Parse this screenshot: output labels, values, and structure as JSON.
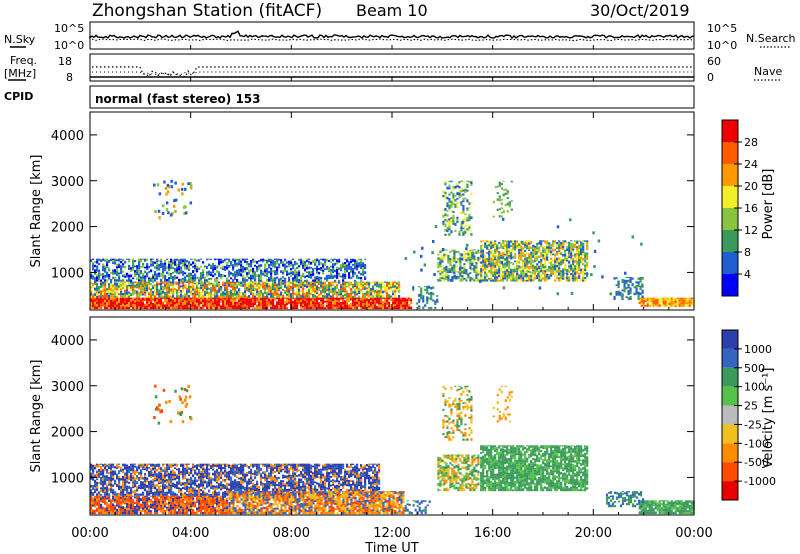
{
  "header": {
    "title": "Zhongshan Station (fitACF)",
    "beam": "Beam 10",
    "date": "30/Oct/2019"
  },
  "noise_panel": {
    "left_label": "N.Sky",
    "left_ticks": [
      "10^5",
      "10^0"
    ],
    "right_label": "N.Search",
    "right_ticks": [
      "10^5",
      "10^0"
    ]
  },
  "freq_panel": {
    "left_label_line1": "Freq.",
    "left_label_line2": "[MHz]",
    "left_ticks": [
      "18",
      "8"
    ],
    "right_label": "Nave",
    "right_ticks": [
      "60",
      "0"
    ]
  },
  "cpid_label": "CPID",
  "mode_text": "normal (fast stereo) 153",
  "time_axis": {
    "label": "Time UT",
    "ticks": [
      "00:00",
      "04:00",
      "08:00",
      "12:00",
      "16:00",
      "20:00",
      "00:00"
    ]
  },
  "chart_data": [
    {
      "type": "heatmap",
      "title": "",
      "xlabel": "Time UT",
      "ylabel": "Slant Range [km]",
      "x_range_hours": [
        0,
        24
      ],
      "ylim": [
        180,
        4500
      ],
      "yticks": [
        "1000",
        "2000",
        "3000",
        "4000"
      ],
      "colorbar": {
        "label": "Power [dB]",
        "ticks": [
          "4",
          "8",
          "12",
          "16",
          "20",
          "24",
          "28"
        ],
        "colors": [
          "#0000ff",
          "#1f5fcf",
          "#3a9a5b",
          "#88c440",
          "#f2ee2a",
          "#ff9a00",
          "#ff5a00",
          "#ee0000"
        ]
      },
      "regions": [
        {
          "t0": 0,
          "t1": 12.8,
          "r0": 200,
          "r1": 450,
          "intensity": "28"
        },
        {
          "t0": 0,
          "t1": 12.3,
          "r0": 450,
          "r1": 800,
          "intensity": "16"
        },
        {
          "t0": 0,
          "t1": 11,
          "r0": 800,
          "r1": 1300,
          "intensity": "8"
        },
        {
          "t0": 13.8,
          "t1": 15.5,
          "r0": 800,
          "r1": 1500,
          "intensity": "16"
        },
        {
          "t0": 15.5,
          "t1": 19.8,
          "r0": 800,
          "r1": 1700,
          "intensity": "20"
        },
        {
          "t0": 21.8,
          "t1": 24,
          "r0": 250,
          "r1": 450,
          "intensity": "20"
        }
      ]
    },
    {
      "type": "heatmap",
      "title": "",
      "xlabel": "Time UT",
      "ylabel": "Slant Range [km]",
      "x_range_hours": [
        0,
        24
      ],
      "ylim": [
        180,
        4500
      ],
      "yticks": [
        "1000",
        "2000",
        "3000",
        "4000"
      ],
      "colorbar": {
        "label": "Velocity [m s⁻¹]",
        "ticks": [
          "1000",
          "500",
          "100",
          "25",
          "-25",
          "-100",
          "-500",
          "-1000"
        ],
        "colors": [
          "#2c3fae",
          "#3364c0",
          "#3a9a5b",
          "#55c24b",
          "#bbbbbb",
          "#f0c020",
          "#ff8c00",
          "#ff4a00",
          "#e80000"
        ]
      },
      "regions": [
        {
          "t0": 0,
          "t1": 5.5,
          "r0": 200,
          "r1": 600,
          "velocity": "-500"
        },
        {
          "t0": 0,
          "t1": 11.5,
          "r0": 600,
          "r1": 1300,
          "velocity": "500"
        },
        {
          "t0": 6,
          "t1": 12.5,
          "r0": 200,
          "r1": 700,
          "velocity": "-100"
        },
        {
          "t0": 14,
          "t1": 19.8,
          "r0": 700,
          "r1": 1700,
          "velocity": "100"
        },
        {
          "t0": 21.8,
          "t1": 24,
          "r0": 200,
          "r1": 500,
          "velocity": "100"
        }
      ]
    }
  ]
}
